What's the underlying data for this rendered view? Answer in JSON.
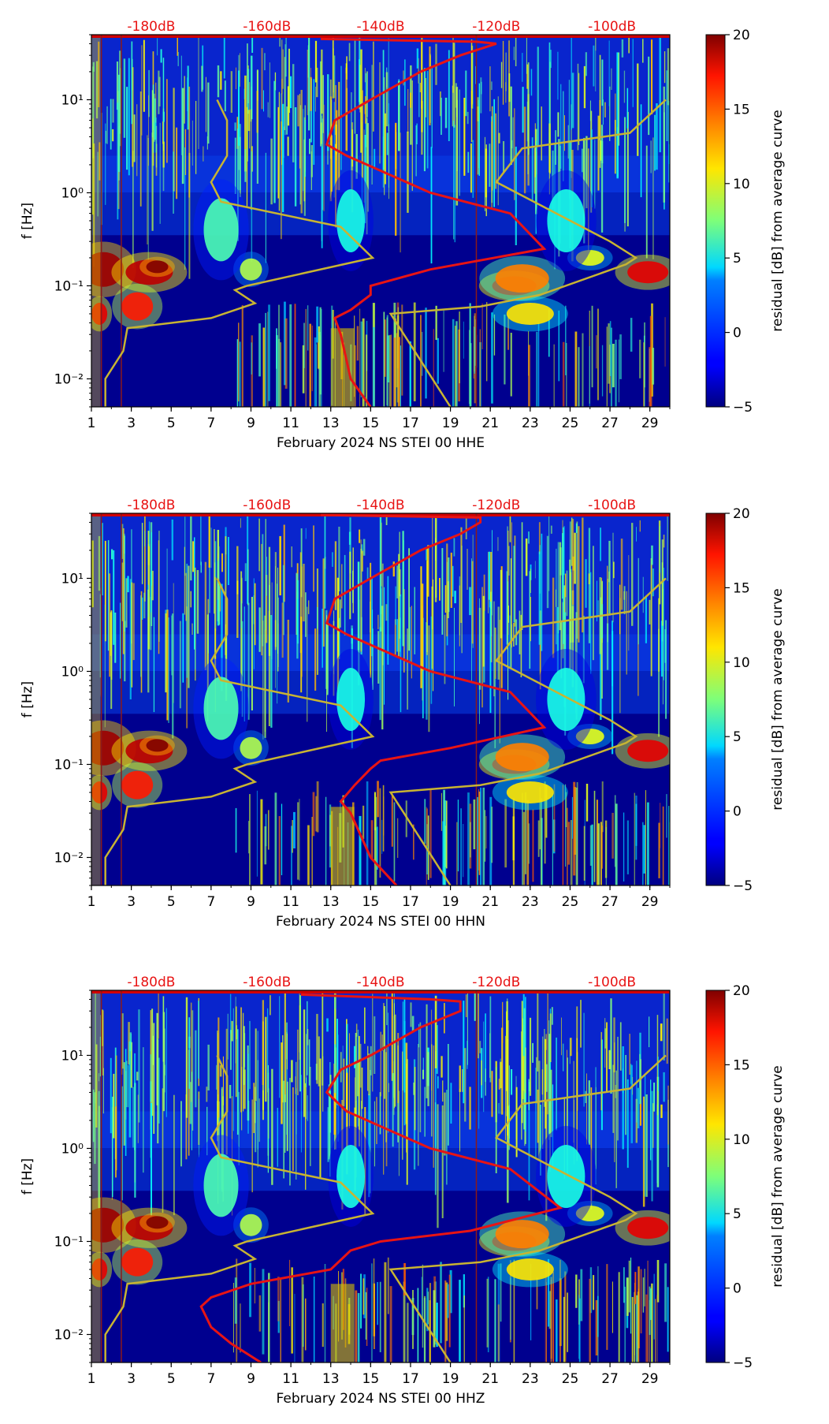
{
  "chart_data": [
    {
      "type": "heatmap",
      "station_label": "February 2024 NS STEI 00 HHE",
      "channel": "HHE",
      "xlabel": "February 2024 NS STEI 00 HHE",
      "ylabel": "f [Hz]",
      "x_ticks": [
        "1",
        "3",
        "5",
        "7",
        "9",
        "11",
        "13",
        "15",
        "17",
        "19",
        "21",
        "23",
        "25",
        "27",
        "29"
      ],
      "xlim": [
        1,
        30
      ],
      "y_scale": "log",
      "ylim": [
        0.005,
        50
      ],
      "y_ticks": [
        {
          "value": 0.01,
          "label": "10⁻²"
        },
        {
          "value": 0.1,
          "label": "10⁻¹"
        },
        {
          "value": 1,
          "label": "10⁰"
        },
        {
          "value": 10,
          "label": "10¹"
        }
      ],
      "db_axis_labels": [
        "-180dB",
        "-160dB",
        "-140dB",
        "-120dB",
        "-100dB"
      ],
      "db_axis_day_positions": [
        4,
        9.8,
        15.5,
        21.3,
        27.1
      ],
      "colorbar": {
        "label": "residual [dB] from average curve",
        "ticks": [
          -5,
          0,
          5,
          10,
          15,
          20
        ],
        "range": [
          -5,
          20
        ],
        "colormap": "jet"
      },
      "vertical_lines_day": [
        1.5,
        2.5,
        20.3
      ],
      "reference_curve": {
        "color": "#c8b432",
        "points": [
          [
            1.7,
            0.005
          ],
          [
            1.7,
            0.01
          ],
          [
            2.6,
            0.02
          ],
          [
            2.8,
            0.035
          ],
          [
            7,
            0.045
          ],
          [
            9.2,
            0.065
          ],
          [
            8.2,
            0.09
          ],
          [
            8.8,
            0.1
          ],
          [
            15.1,
            0.2
          ],
          [
            13.5,
            0.43
          ],
          [
            7.5,
            0.8
          ],
          [
            7,
            1.3
          ],
          [
            7.8,
            2.5
          ],
          [
            7.8,
            6
          ],
          [
            7.3,
            10
          ]
        ],
        "points_b": [
          [
            19,
            0.005
          ],
          [
            16,
            0.05
          ],
          [
            20.5,
            0.06
          ],
          [
            23.5,
            0.08
          ],
          [
            27.8,
            0.17
          ],
          [
            28.3,
            0.2
          ],
          [
            27,
            0.3
          ],
          [
            21.3,
            1.3
          ],
          [
            22.6,
            3
          ],
          [
            28,
            4.4
          ],
          [
            29.8,
            10
          ]
        ]
      },
      "psd_curve": {
        "color": "#e81414",
        "points": [
          [
            15,
            0.005
          ],
          [
            14,
            0.01
          ],
          [
            13.5,
            0.03
          ],
          [
            13.2,
            0.045
          ],
          [
            14,
            0.055
          ],
          [
            15,
            0.08
          ],
          [
            15,
            0.1
          ],
          [
            18,
            0.15
          ],
          [
            23.7,
            0.25
          ],
          [
            22,
            0.6
          ],
          [
            18,
            1
          ],
          [
            13.8,
            2.5
          ],
          [
            12.8,
            3.3
          ],
          [
            13.2,
            6
          ],
          [
            15,
            10
          ],
          [
            17.5,
            20
          ],
          [
            19.5,
            30
          ],
          [
            21.3,
            40
          ],
          [
            20.3,
            42
          ],
          [
            12.5,
            45
          ]
        ]
      }
    },
    {
      "type": "heatmap",
      "station_label": "February 2024 NS STEI 00 HHN",
      "channel": "HHN",
      "xlabel": "February 2024 NS STEI 00 HHN",
      "ylabel": "f [Hz]",
      "x_ticks": [
        "1",
        "3",
        "5",
        "7",
        "9",
        "11",
        "13",
        "15",
        "17",
        "19",
        "21",
        "23",
        "25",
        "27",
        "29"
      ],
      "xlim": [
        1,
        30
      ],
      "y_scale": "log",
      "ylim": [
        0.005,
        50
      ],
      "y_ticks": [
        {
          "value": 0.01,
          "label": "10⁻²"
        },
        {
          "value": 0.1,
          "label": "10⁻¹"
        },
        {
          "value": 1,
          "label": "10⁰"
        },
        {
          "value": 10,
          "label": "10¹"
        }
      ],
      "db_axis_labels": [
        "-180dB",
        "-160dB",
        "-140dB",
        "-120dB",
        "-100dB"
      ],
      "db_axis_day_positions": [
        4,
        9.8,
        15.5,
        21.3,
        27.1
      ],
      "colorbar": {
        "label": "residual [dB] from average curve",
        "ticks": [
          -5,
          0,
          5,
          10,
          15,
          20
        ],
        "range": [
          -5,
          20
        ],
        "colormap": "jet"
      },
      "vertical_lines_day": [
        1.5,
        2.5,
        20.3
      ],
      "reference_curve": {
        "color": "#c8b432",
        "points": [
          [
            1.7,
            0.005
          ],
          [
            1.7,
            0.01
          ],
          [
            2.6,
            0.02
          ],
          [
            2.8,
            0.035
          ],
          [
            7,
            0.045
          ],
          [
            9.2,
            0.065
          ],
          [
            8.2,
            0.09
          ],
          [
            8.8,
            0.1
          ],
          [
            15.1,
            0.2
          ],
          [
            13.5,
            0.43
          ],
          [
            7.5,
            0.8
          ],
          [
            7,
            1.3
          ],
          [
            7.8,
            2.5
          ],
          [
            7.8,
            6
          ],
          [
            7.3,
            10
          ]
        ],
        "points_b": [
          [
            19,
            0.005
          ],
          [
            16,
            0.05
          ],
          [
            20.5,
            0.06
          ],
          [
            23.5,
            0.08
          ],
          [
            27.8,
            0.17
          ],
          [
            28.3,
            0.2
          ],
          [
            27,
            0.3
          ],
          [
            21.3,
            1.3
          ],
          [
            22.6,
            3
          ],
          [
            28,
            4.4
          ],
          [
            29.8,
            10
          ]
        ]
      },
      "psd_curve": {
        "color": "#e81414",
        "points": [
          [
            16.3,
            0.005
          ],
          [
            15,
            0.01
          ],
          [
            14,
            0.03
          ],
          [
            13.5,
            0.04
          ],
          [
            14.2,
            0.06
          ],
          [
            15,
            0.09
          ],
          [
            15.5,
            0.11
          ],
          [
            19,
            0.15
          ],
          [
            23.7,
            0.25
          ],
          [
            22,
            0.6
          ],
          [
            18,
            1
          ],
          [
            13.8,
            2.5
          ],
          [
            12.8,
            3.3
          ],
          [
            13.2,
            6
          ],
          [
            15,
            10
          ],
          [
            17.5,
            20
          ],
          [
            19.5,
            30
          ],
          [
            20.5,
            40
          ],
          [
            20.5,
            45
          ],
          [
            12.5,
            48
          ]
        ]
      }
    },
    {
      "type": "heatmap",
      "station_label": "February 2024 NS STEI 00 HHZ",
      "channel": "HHZ",
      "xlabel": "February 2024 NS STEI 00 HHZ",
      "ylabel": "f [Hz]",
      "x_ticks": [
        "1",
        "3",
        "5",
        "7",
        "9",
        "11",
        "13",
        "15",
        "17",
        "19",
        "21",
        "23",
        "25",
        "27",
        "29"
      ],
      "xlim": [
        1,
        30
      ],
      "y_scale": "log",
      "ylim": [
        0.005,
        50
      ],
      "y_ticks": [
        {
          "value": 0.01,
          "label": "10⁻²"
        },
        {
          "value": 0.1,
          "label": "10⁻¹"
        },
        {
          "value": 1,
          "label": "10⁰"
        },
        {
          "value": 10,
          "label": "10¹"
        }
      ],
      "db_axis_labels": [
        "-180dB",
        "-160dB",
        "-140dB",
        "-120dB",
        "-100dB"
      ],
      "db_axis_day_positions": [
        4,
        9.8,
        15.5,
        21.3,
        27.1
      ],
      "colorbar": {
        "label": "residual [dB] from average curve",
        "ticks": [
          -5,
          0,
          5,
          10,
          15,
          20
        ],
        "range": [
          -5,
          20
        ],
        "colormap": "jet"
      },
      "vertical_lines_day": [
        1.5,
        2.5,
        20.3
      ],
      "reference_curve": {
        "color": "#c8b432",
        "points": [
          [
            1.7,
            0.005
          ],
          [
            1.7,
            0.01
          ],
          [
            2.6,
            0.02
          ],
          [
            2.8,
            0.035
          ],
          [
            7,
            0.045
          ],
          [
            9.2,
            0.065
          ],
          [
            8.2,
            0.09
          ],
          [
            8.8,
            0.1
          ],
          [
            15.1,
            0.2
          ],
          [
            13.5,
            0.43
          ],
          [
            7.5,
            0.8
          ],
          [
            7,
            1.3
          ],
          [
            7.8,
            2.5
          ],
          [
            7.8,
            6
          ],
          [
            7.3,
            10
          ]
        ],
        "points_b": [
          [
            19,
            0.005
          ],
          [
            16,
            0.05
          ],
          [
            20.5,
            0.06
          ],
          [
            23.5,
            0.08
          ],
          [
            27.8,
            0.17
          ],
          [
            28.3,
            0.2
          ],
          [
            27,
            0.3
          ],
          [
            21.3,
            1.3
          ],
          [
            22.6,
            3
          ],
          [
            28,
            4.4
          ],
          [
            29.8,
            10
          ]
        ]
      },
      "psd_curve": {
        "color": "#e81414",
        "points": [
          [
            9.5,
            0.005
          ],
          [
            8,
            0.008
          ],
          [
            7,
            0.012
          ],
          [
            6.5,
            0.02
          ],
          [
            7,
            0.025
          ],
          [
            9,
            0.035
          ],
          [
            13,
            0.05
          ],
          [
            14,
            0.08
          ],
          [
            15.5,
            0.1
          ],
          [
            20,
            0.13
          ],
          [
            24.5,
            0.23
          ],
          [
            22,
            0.6
          ],
          [
            18,
            1
          ],
          [
            13.8,
            2.5
          ],
          [
            12.8,
            4
          ],
          [
            13.5,
            7
          ],
          [
            15,
            10
          ],
          [
            17.5,
            20
          ],
          [
            19.5,
            30
          ],
          [
            19.5,
            38
          ],
          [
            18,
            40
          ],
          [
            11.5,
            45
          ]
        ]
      }
    }
  ]
}
